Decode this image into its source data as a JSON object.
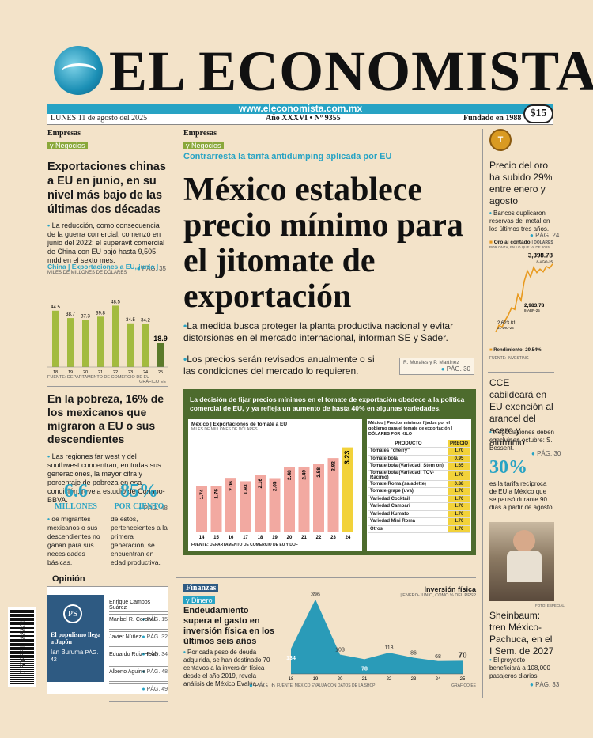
{
  "masthead": {
    "title": "EL ECONOMISTA",
    "url": "www.eleconomista.com.mx",
    "date": "LUNES 11 de agosto del 2025",
    "issue": "Año XXXVI • Nº 9355",
    "founded": "Fundado en 1988",
    "price": "$15"
  },
  "left_top": {
    "kicker": "Empresas",
    "kicker_sub": "y Negocios",
    "headline": "Exportaciones chinas a EU en junio, en su nivel más bajo de las últimas dos décadas",
    "bullet": "La reducción, como consecuencia de la guerra comercial, comenzó en junio del 2022; el superávit comercial de China con EU bajó hasta 9,505 mdd en el sexto mes.",
    "pag": "PÁG. 35",
    "chart_title": "China | Exportaciones a EU, junio |",
    "chart_sub": "MILES DE MILLONES DE DÓLARES",
    "chart_source": "FUENTE: DEPARTAMENTO DE COMERCIO DE EU",
    "chart_credit": "GRÁFICO EE"
  },
  "left_mid": {
    "headline": "En la pobreza, 16% de los mexicanos que migraron a EU o sus descendientes",
    "bullet": "Las regiones far west y del southwest concentran, en todas sus generaciones, la mayor cifra y porcentaje de pobreza en esa condición, revela estudio de Conapo-BBVA.",
    "pag": "PÁG. 48",
    "stat1_value": "6.6",
    "stat1_label": "MILLONES",
    "stat1_text": "de migrantes mexicanos o sus descendientes no ganan para sus necesidades básicas.",
    "stat2_value": "85%",
    "stat2_label": "POR CIENTO",
    "stat2_text": "de estos, pertenecientes a la primera generación, se encuentran en edad productiva."
  },
  "opinion": {
    "header": "Opinión",
    "box_logo": "PS",
    "box_title": "El populismo llega a Japón",
    "box_author": "Ian Buruma",
    "box_pag": "PÁG. 42",
    "items": [
      {
        "name": "Enrique Campos Suárez",
        "pag": "PÁG. 15"
      },
      {
        "name": "Maribel R. Coronel",
        "pag": "PÁG. 32"
      },
      {
        "name": "Javier Núñez",
        "pag": "PÁG. 34"
      },
      {
        "name": "Eduardo Ruiz-Healy",
        "pag": "PÁG. 48"
      },
      {
        "name": "Alberto Aguirre",
        "pag": "PÁG. 49"
      }
    ],
    "barcode_number": "7 509661 885870"
  },
  "main": {
    "kicker": "Empresas",
    "kicker_sub": "y Negocios",
    "subhead": "Contrarresta la tarifa antidumping aplicada por EU",
    "headline": "México establece precio mínimo para el jitomate de exportación",
    "bullet1": "La medida busca proteger la planta productiva nacional y evitar distorsiones en el mercado internacional, informan SE y Sader.",
    "bullet2": "Los precios serán revisados anualmente o si las condiciones del mercado lo requieren.",
    "byline": "R. Morales y P. Martínez",
    "pag": "PÁG. 30",
    "box_intro": "La decisión de fijar precios mínimos en el tomate de exportación obedece a la política comercial de EU, y ya refleja un aumento de hasta 40% en algunas variedades.",
    "chart_title": "México | Exportaciones de tomate a EU",
    "chart_sub": "MILES DE MILLONES DE DÓLARES",
    "chart_source": "FUENTE: DEPARTAMENTO DE COMERCIO DE EU Y DOF",
    "table_title": "México | Precios mínimos fijados por el gobierno para el tomate de exportación | DÓLARES POR KILO",
    "table_head_product": "PRODUCTO",
    "table_head_price": "PRECIO",
    "table_rows": [
      {
        "product": "Tomates \"cherry\"",
        "price": "1.70"
      },
      {
        "product": "Tomate bola",
        "price": "0.95"
      },
      {
        "product": "Tomate bola (Variedad: Stem on)",
        "price": "1.65"
      },
      {
        "product": "Tomate bola (Variedad: TOV-Racimo)",
        "price": "1.70"
      },
      {
        "product": "Tomate Roma (saladette)",
        "price": "0.88"
      },
      {
        "product": "Tomate grape (uva)",
        "price": "1.70"
      },
      {
        "product": "Variedad Cocktail",
        "price": "1.70"
      },
      {
        "product": "Variedad Campari",
        "price": "1.70"
      },
      {
        "product": "Variedad Kumato",
        "price": "1.70"
      },
      {
        "product": "Variedad Mini Roma",
        "price": "1.70"
      },
      {
        "product": "Otros",
        "price": "1.70"
      }
    ]
  },
  "finanzas": {
    "kicker": "Finanzas",
    "kicker_sub": "y Dinero",
    "headline": "Endeudamiento supera el gasto en inversión física en los últimos seis años",
    "bullet": "Por cada peso de deuda adquirida, se han destinado 70 centavos a la inversión física desde el año 2019, revela análisis de México Evalúa.",
    "pag": "PÁG. 6",
    "chart_title": "Inversión física",
    "chart_sub": "| ENERO-JUNIO, COMO % DEL RFSP",
    "chart_source": "FUENTE: MÉXICO EVALÚA CON DATOS DE LA SHCP",
    "chart_credit": "GRÁFICO EE"
  },
  "right": {
    "gold_headline": "Precio del oro ha subido 29% entre enero y agosto",
    "gold_bullet": "Bancos duplicaron reservas del metal en los últimos tres años.",
    "gold_pag": "PÁG. 24",
    "gold_chart_title": "Oro al contado",
    "gold_chart_unit": "| DÓLARES",
    "gold_chart_sub": "POR ONZA, EN LO QUE VA DE 2025",
    "gold_label_top": "3,398.78",
    "gold_label_top_date": "8-AGO-25",
    "gold_label_mid": "2,983.78",
    "gold_label_mid_date": "8-ABR-25",
    "gold_label_low": "2,623.81",
    "gold_label_low_date": "31-DIC-24",
    "gold_yield": "Rendimiento: 29.54%",
    "gold_source": "FUENTE: INVESTING",
    "cce_headline": "CCE cabildeará en EU exención al arancel del acero y aluminio",
    "cce_bullet": "Negociaciones deben concluir en octubre: S. Bessent.",
    "cce_pag": "PÁG. 30",
    "cce_stat": "30%",
    "cce_text": "es la tarifa recíproca de EU a México que se pausó durante 90 días a partir de agosto.",
    "photo_credit": "FOTO: ESPECIAL",
    "train_headline": "Sheinbaum: tren México-Pachuca, en el I Sem. de 2027",
    "train_bullet": "El proyecto beneficiará a 108,000 pasajeros diarios.",
    "train_pag": "PÁG. 33"
  },
  "chart_data": [
    {
      "type": "bar",
      "title": "China | Exportaciones a EU, junio |",
      "categories": [
        "18",
        "19",
        "20",
        "21",
        "22",
        "23",
        "24",
        "25"
      ],
      "values": [
        44.5,
        38.7,
        37.3,
        39.8,
        48.5,
        34.5,
        34.2,
        18.9
      ],
      "ylabel": "MILES DE MILLONES DE DÓLARES",
      "ylim": [
        0,
        50
      ],
      "colors": {
        "default": "#a3bb3f",
        "highlight": "#5b7a2a"
      }
    },
    {
      "type": "bar",
      "title": "México | Exportaciones de tomate a EU",
      "categories": [
        "14",
        "15",
        "16",
        "17",
        "18",
        "19",
        "20",
        "21",
        "22",
        "23",
        "24"
      ],
      "values": [
        1.74,
        1.76,
        2.06,
        1.93,
        2.16,
        2.05,
        2.48,
        2.49,
        2.58,
        2.82,
        3.23
      ],
      "ylabel": "MILES DE MILLONES DE DÓLARES",
      "ylim": [
        0,
        3.4
      ],
      "colors": {
        "default": "#f2a9a1",
        "highlight": "#f2d23a"
      }
    },
    {
      "type": "area",
      "title": "Inversión física",
      "x": [
        "18",
        "19",
        "20",
        "21",
        "22",
        "23",
        "24",
        "25"
      ],
      "values": [
        134,
        396,
        103,
        78,
        113,
        86,
        68,
        70
      ],
      "ylim": [
        0,
        420
      ],
      "colors": {
        "fill": "#2a9bb8"
      }
    },
    {
      "type": "line",
      "title": "Oro al contado",
      "x": [
        "31-DIC-24",
        "8-ABR-25",
        "8-AGO-25"
      ],
      "values": [
        2623.81,
        2983.78,
        3398.78
      ],
      "ylim": [
        2550,
        3450
      ],
      "colors": {
        "line": "#e89a1f"
      }
    }
  ]
}
